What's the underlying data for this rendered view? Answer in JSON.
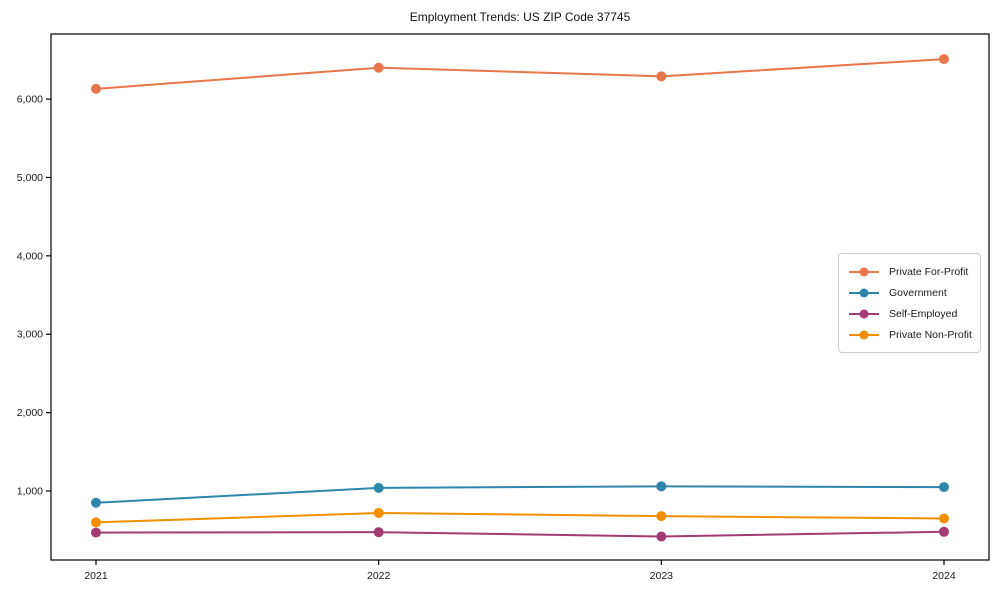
{
  "chart_data": {
    "type": "line",
    "title": "Employment Trends: US ZIP Code 37745",
    "categories": [
      "2021",
      "2022",
      "2023",
      "2024"
    ],
    "series": [
      {
        "name": "Private For-Profit",
        "color": "#e8764b",
        "values": [
          6130,
          6400,
          6290,
          6510
        ]
      },
      {
        "name": "Government",
        "color": "#2e86ab",
        "values": [
          850,
          1040,
          1060,
          1050
        ]
      },
      {
        "name": "Self-Employed",
        "color": "#a23b72",
        "values": [
          470,
          475,
          420,
          480
        ]
      },
      {
        "name": "Private Non-Profit",
        "color": "#f18f01",
        "values": [
          600,
          720,
          680,
          650
        ]
      }
    ],
    "yticks": [
      {
        "value": 1000,
        "label": "1,000"
      },
      {
        "value": 2000,
        "label": "2,000"
      },
      {
        "value": 3000,
        "label": "3,000"
      },
      {
        "value": 4000,
        "label": "4,000"
      },
      {
        "value": 5000,
        "label": "5,000"
      },
      {
        "value": 6000,
        "label": "6,000"
      }
    ],
    "ylim": [
      120,
      6830
    ],
    "grid": false,
    "legend_position": "center-right",
    "frame_color": "#000000",
    "tick_label_color": "#1a1a1a"
  }
}
